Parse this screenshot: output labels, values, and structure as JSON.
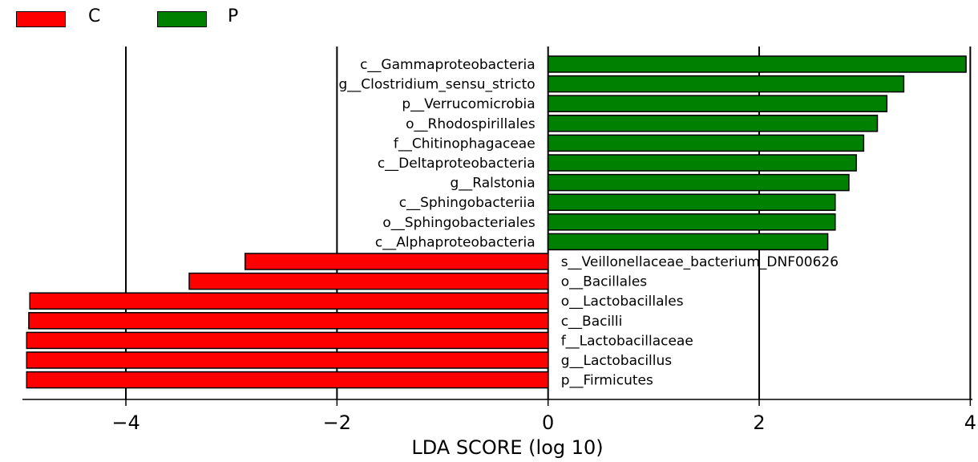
{
  "legend": [
    {
      "label": "C",
      "color": "#ff0000"
    },
    {
      "label": "P",
      "color": "#008000"
    }
  ],
  "chart_data": {
    "type": "bar",
    "orientation": "horizontal",
    "xlabel": "LDA SCORE (log 10)",
    "xlim": [
      -4.98,
      4.02
    ],
    "xticks": [
      -4,
      -2,
      0,
      2,
      4
    ],
    "xtick_labels": [
      "−4",
      "−2",
      "0",
      "2",
      "4"
    ],
    "grid": "vertical lines at x ticks",
    "legend_placement": "top-left",
    "series": [
      {
        "name": "C",
        "color": "#ff0000"
      },
      {
        "name": "P",
        "color": "#008000"
      }
    ],
    "bars": [
      {
        "label": "c__Gammaproteobacteria",
        "value": 3.96,
        "group": "P"
      },
      {
        "label": "g__Clostridium_sensu_stricto",
        "value": 3.37,
        "group": "P"
      },
      {
        "label": "p__Verrucomicrobia",
        "value": 3.21,
        "group": "P"
      },
      {
        "label": "o__Rhodospirillales",
        "value": 3.12,
        "group": "P"
      },
      {
        "label": "f__Chitinophagaceae",
        "value": 2.99,
        "group": "P"
      },
      {
        "label": "c__Deltaproteobacteria",
        "value": 2.92,
        "group": "P"
      },
      {
        "label": "g__Ralstonia",
        "value": 2.85,
        "group": "P"
      },
      {
        "label": "c__Sphingobacteriia",
        "value": 2.72,
        "group": "P"
      },
      {
        "label": "o__Sphingobacteriales",
        "value": 2.72,
        "group": "P"
      },
      {
        "label": "c__Alphaproteobacteria",
        "value": 2.65,
        "group": "P"
      },
      {
        "label": "s__Veillonellaceae_bacterium_DNF00626",
        "value": -2.87,
        "group": "C"
      },
      {
        "label": "o__Bacillales",
        "value": -3.4,
        "group": "C"
      },
      {
        "label": "o__Lactobacillales",
        "value": -4.91,
        "group": "C"
      },
      {
        "label": "c__Bacilli",
        "value": -4.92,
        "group": "C"
      },
      {
        "label": "f__Lactobacillaceae",
        "value": -4.94,
        "group": "C"
      },
      {
        "label": "g__Lactobacillus",
        "value": -4.94,
        "group": "C"
      },
      {
        "label": "p__Firmicutes",
        "value": -4.94,
        "group": "C"
      }
    ]
  }
}
